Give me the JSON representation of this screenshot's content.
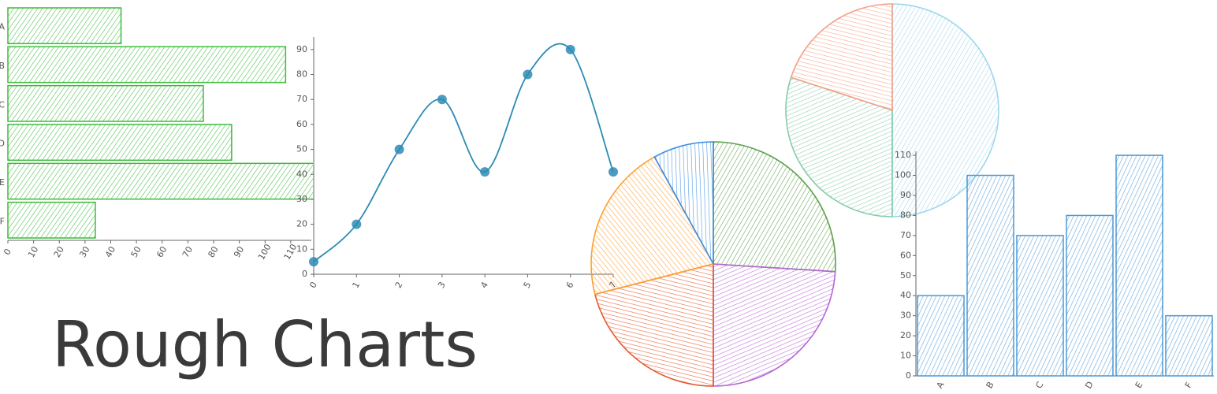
{
  "title": "Rough Charts",
  "chart_data": [
    {
      "type": "hbar",
      "categories": [
        "A",
        "B",
        "C",
        "D",
        "E",
        "F"
      ],
      "values": [
        44,
        108,
        76,
        87,
        120,
        34
      ],
      "color": "#3dbb3d",
      "xlim": [
        0,
        118
      ],
      "xticks": [
        0,
        10,
        20,
        30,
        40,
        50,
        60,
        70,
        80,
        90,
        100,
        110
      ]
    },
    {
      "type": "line",
      "x": [
        0,
        1,
        2,
        3,
        4,
        5,
        6,
        7
      ],
      "values": [
        5,
        20,
        50,
        70,
        41,
        80,
        90,
        41
      ],
      "color": "#2b8bb3",
      "xlim": [
        0,
        7
      ],
      "xticks": [
        0,
        1,
        2,
        3,
        4,
        5,
        6,
        7
      ],
      "ylim": [
        0,
        95
      ],
      "yticks": [
        0,
        10,
        20,
        30,
        40,
        50,
        60,
        70,
        80,
        90
      ]
    },
    {
      "type": "pie",
      "values": [
        26,
        24,
        21,
        21,
        8
      ],
      "colors": [
        "#5aa048",
        "#b866d4",
        "#e4572e",
        "#ff9e2c",
        "#3e8ee0"
      ]
    },
    {
      "type": "pie",
      "values": [
        50,
        30,
        20
      ],
      "colors": [
        "#9dd6ec",
        "#86cba9",
        "#f3a188"
      ]
    },
    {
      "type": "bar",
      "categories": [
        "A",
        "B",
        "C",
        "D",
        "E",
        "F"
      ],
      "values": [
        40,
        100,
        70,
        80,
        110,
        30
      ],
      "color": "#4a98d6",
      "ylim": [
        0,
        112
      ],
      "yticks": [
        0,
        10,
        20,
        30,
        40,
        50,
        60,
        70,
        80,
        90,
        100,
        110
      ]
    }
  ]
}
